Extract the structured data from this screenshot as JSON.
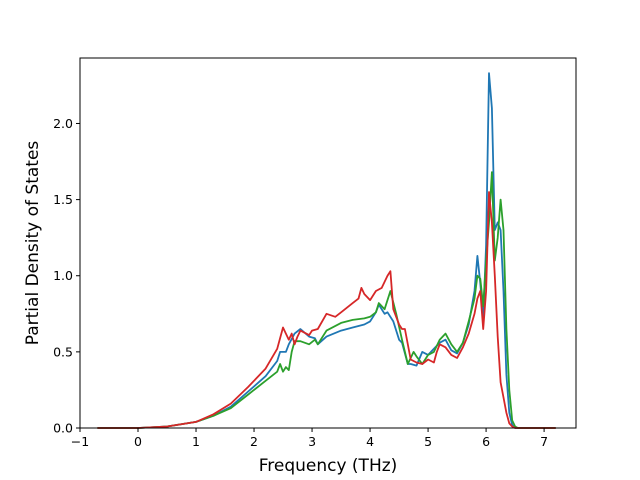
{
  "chart_data": {
    "type": "line",
    "title": "",
    "xlabel": "Frequency (THz)",
    "ylabel": "Partial Density of States",
    "xlim": [
      -1.0,
      7.55
    ],
    "ylim": [
      0.0,
      2.43
    ],
    "xticks": [
      -1,
      0,
      1,
      2,
      3,
      4,
      5,
      6,
      7
    ],
    "yticks": [
      0.0,
      0.5,
      1.0,
      1.5,
      2.0
    ],
    "xtick_labels": [
      "−1",
      "0",
      "1",
      "2",
      "3",
      "4",
      "5",
      "6",
      "7"
    ],
    "ytick_labels": [
      "0.0",
      "0.5",
      "1.0",
      "1.5",
      "2.0"
    ],
    "grid": false,
    "legend": "none",
    "series": [
      {
        "color": "#1f77b4",
        "x": [
          -0.7,
          0.0,
          0.5,
          1.0,
          1.3,
          1.6,
          1.9,
          2.2,
          2.4,
          2.45,
          2.55,
          2.6,
          2.7,
          2.8,
          2.95,
          3.05,
          3.1,
          3.25,
          3.5,
          3.7,
          3.9,
          4.0,
          4.1,
          4.15,
          4.25,
          4.3,
          4.4,
          4.5,
          4.55,
          4.65,
          4.7,
          4.8,
          4.9,
          5.0,
          5.1,
          5.2,
          5.3,
          5.4,
          5.5,
          5.6,
          5.7,
          5.8,
          5.85,
          5.9,
          5.95,
          6.0,
          6.05,
          6.1,
          6.15,
          6.2,
          6.25,
          6.3,
          6.35,
          6.4,
          6.45,
          6.5,
          6.55,
          7.2
        ],
        "y": [
          0.0,
          0.0,
          0.01,
          0.04,
          0.08,
          0.14,
          0.24,
          0.34,
          0.44,
          0.5,
          0.5,
          0.55,
          0.62,
          0.65,
          0.6,
          0.59,
          0.55,
          0.6,
          0.64,
          0.66,
          0.68,
          0.7,
          0.76,
          0.81,
          0.75,
          0.76,
          0.7,
          0.58,
          0.56,
          0.42,
          0.42,
          0.41,
          0.5,
          0.48,
          0.52,
          0.56,
          0.58,
          0.51,
          0.49,
          0.56,
          0.68,
          0.9,
          1.13,
          0.95,
          0.72,
          1.2,
          2.33,
          2.1,
          1.3,
          1.35,
          1.3,
          0.9,
          0.35,
          0.1,
          0.02,
          0.0,
          0.0,
          0.0
        ]
      },
      {
        "color": "#2ca02c",
        "x": [
          -0.7,
          0.0,
          0.5,
          1.0,
          1.3,
          1.6,
          1.9,
          2.2,
          2.4,
          2.45,
          2.5,
          2.55,
          2.6,
          2.65,
          2.7,
          2.8,
          2.95,
          3.05,
          3.1,
          3.25,
          3.5,
          3.7,
          3.9,
          4.0,
          4.1,
          4.15,
          4.25,
          4.35,
          4.45,
          4.55,
          4.65,
          4.75,
          4.8,
          4.9,
          5.0,
          5.1,
          5.2,
          5.3,
          5.4,
          5.5,
          5.6,
          5.7,
          5.8,
          5.85,
          5.9,
          5.95,
          6.0,
          6.05,
          6.1,
          6.15,
          6.2,
          6.25,
          6.3,
          6.35,
          6.4,
          6.45,
          6.5,
          6.55,
          6.6,
          7.2
        ],
        "y": [
          0.0,
          0.0,
          0.01,
          0.04,
          0.08,
          0.13,
          0.22,
          0.31,
          0.37,
          0.42,
          0.37,
          0.4,
          0.38,
          0.5,
          0.57,
          0.57,
          0.55,
          0.58,
          0.55,
          0.64,
          0.69,
          0.71,
          0.72,
          0.73,
          0.76,
          0.82,
          0.78,
          0.9,
          0.75,
          0.58,
          0.42,
          0.5,
          0.47,
          0.42,
          0.48,
          0.5,
          0.58,
          0.62,
          0.55,
          0.5,
          0.56,
          0.7,
          0.85,
          1.0,
          0.98,
          0.8,
          1.1,
          1.35,
          1.68,
          1.1,
          1.25,
          1.5,
          1.3,
          0.65,
          0.25,
          0.05,
          0.01,
          0.0,
          0.0,
          0.0
        ]
      },
      {
        "color": "#d62728",
        "x": [
          -0.7,
          0.0,
          0.5,
          1.0,
          1.3,
          1.6,
          1.9,
          2.2,
          2.4,
          2.5,
          2.6,
          2.65,
          2.7,
          2.75,
          2.8,
          2.95,
          3.0,
          3.1,
          3.25,
          3.4,
          3.5,
          3.6,
          3.7,
          3.8,
          3.85,
          3.9,
          4.0,
          4.1,
          4.2,
          4.3,
          4.35,
          4.4,
          4.5,
          4.55,
          4.6,
          4.7,
          4.8,
          4.9,
          5.0,
          5.1,
          5.15,
          5.2,
          5.3,
          5.4,
          5.5,
          5.6,
          5.7,
          5.8,
          5.85,
          5.9,
          5.95,
          6.0,
          6.05,
          6.1,
          6.15,
          6.2,
          6.25,
          6.3,
          6.35,
          6.4,
          6.45,
          6.5,
          7.2
        ],
        "y": [
          0.0,
          0.0,
          0.01,
          0.04,
          0.09,
          0.16,
          0.27,
          0.39,
          0.52,
          0.66,
          0.58,
          0.62,
          0.55,
          0.6,
          0.64,
          0.61,
          0.64,
          0.65,
          0.75,
          0.73,
          0.76,
          0.79,
          0.82,
          0.85,
          0.92,
          0.88,
          0.84,
          0.9,
          0.92,
          1.0,
          1.03,
          0.78,
          0.68,
          0.65,
          0.65,
          0.45,
          0.43,
          0.42,
          0.45,
          0.43,
          0.5,
          0.55,
          0.53,
          0.48,
          0.46,
          0.53,
          0.62,
          0.75,
          0.85,
          0.9,
          0.65,
          0.9,
          1.55,
          1.35,
          1.0,
          0.6,
          0.3,
          0.2,
          0.1,
          0.03,
          0.01,
          0.0,
          0.0
        ]
      }
    ]
  }
}
